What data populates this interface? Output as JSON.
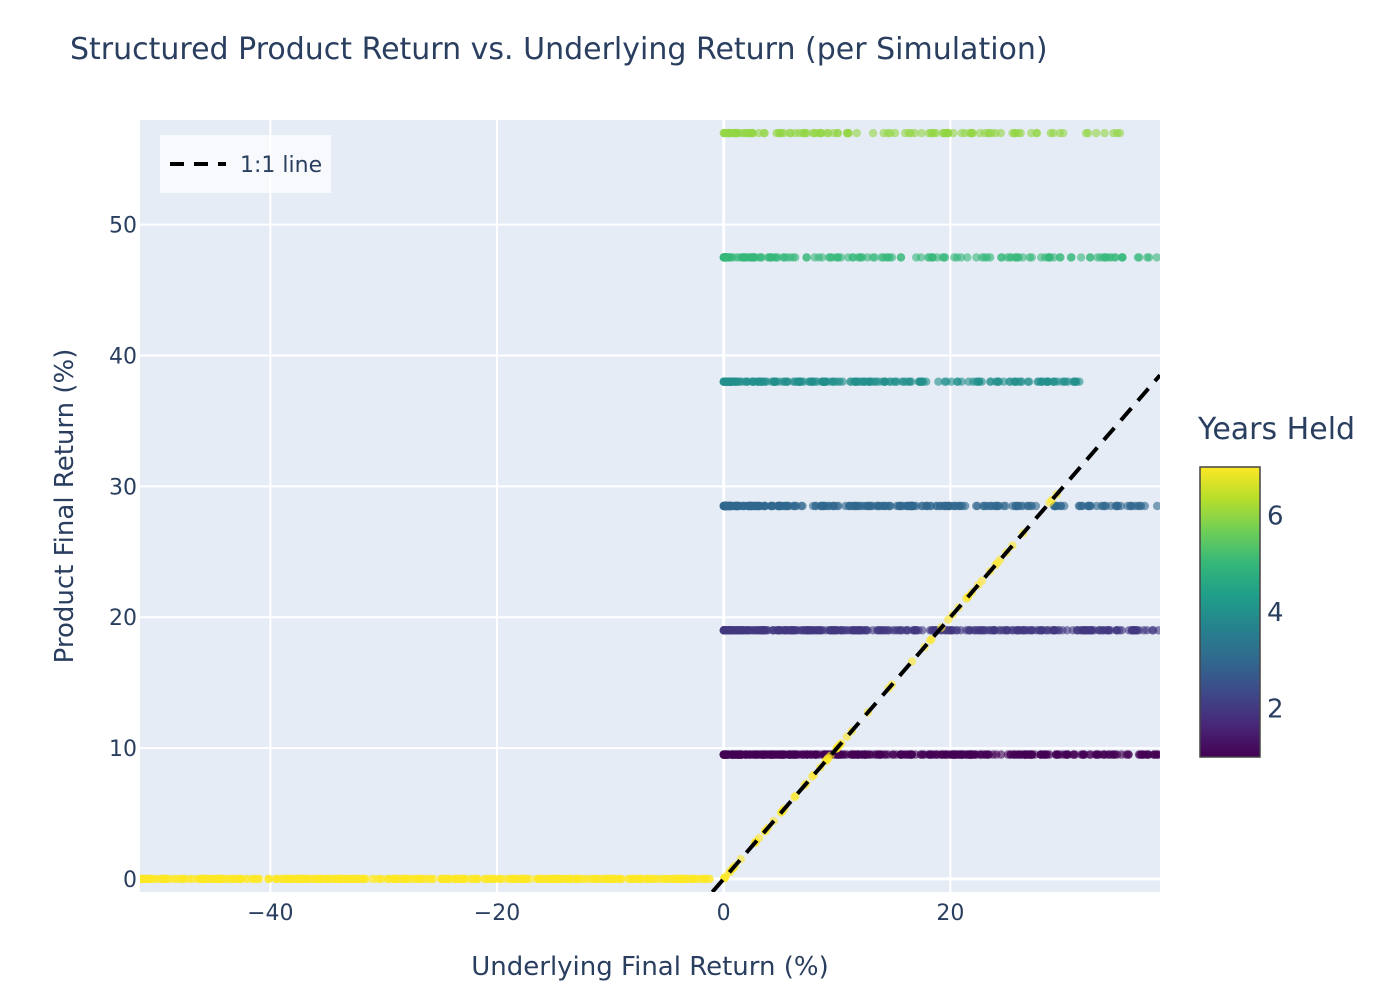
{
  "chart_data": {
    "type": "scatter",
    "title": "Structured Product Return vs. Underlying Return (per Simulation)",
    "xlabel": "Underlying Final Return (%)",
    "ylabel": "Product Final Return (%)",
    "xlim": [
      -51.5,
      38.5
    ],
    "ylim": [
      -1,
      58
    ],
    "x_ticks": [
      -40,
      -20,
      0,
      20
    ],
    "x_tick_labels": [
      "−40",
      "−20",
      "0",
      "20"
    ],
    "y_ticks": [
      0,
      10,
      20,
      30,
      40,
      50
    ],
    "y_tick_labels": [
      "0",
      "10",
      "20",
      "30",
      "40",
      "50"
    ],
    "grid": true,
    "colorscale": "Viridis",
    "colorbar": {
      "title": "Years Held",
      "range": [
        1,
        7
      ],
      "ticks": [
        2,
        4,
        6
      ],
      "tick_labels": [
        "2",
        "4",
        "6"
      ]
    },
    "legend": {
      "position": "top-left",
      "entries": [
        {
          "name": "1:1 line",
          "style": "dashed",
          "color": "#000000"
        }
      ]
    },
    "reference_line": {
      "name": "1:1 line",
      "x": [
        -1,
        38.5
      ],
      "y": [
        -1,
        38.5
      ]
    },
    "series": [
      {
        "years": 1,
        "product_return": 9.5,
        "x_min": 0,
        "x_max": 38.5,
        "points": 380
      },
      {
        "years": 2,
        "product_return": 19,
        "x_min": 0,
        "x_max": 38.5,
        "points": 320
      },
      {
        "years": 3,
        "product_return": 28.5,
        "x_min": 0,
        "x_max": 38.5,
        "points": 260
      },
      {
        "years": 4,
        "product_return": 38,
        "x_min": 0,
        "x_max": 33,
        "points": 200
      },
      {
        "years": 5,
        "product_return": 47.5,
        "x_min": 0,
        "x_max": 38.5,
        "points": 150
      },
      {
        "years": 6,
        "product_return": 57,
        "x_min": 0,
        "x_max": 35,
        "points": 110
      },
      {
        "years": 7,
        "product_return": 0,
        "x_min": -51.5,
        "x_max": -1,
        "points": 420
      },
      {
        "years": 7,
        "product_return_equals_underlying": true,
        "x_min": 0,
        "x_max": 30,
        "points": 70
      }
    ]
  }
}
